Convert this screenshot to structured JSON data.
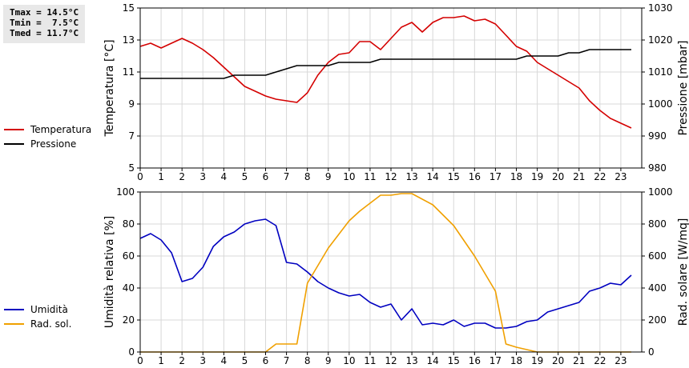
{
  "stats": {
    "tmax": "Tmax = 14.5°C",
    "tmin": "Tmin =  7.5°C",
    "tmed": "Tmed = 11.7°C"
  },
  "colors": {
    "temperature": "#d40000",
    "pressure": "#000000",
    "humidity": "#0000c0",
    "radiation": "#f0a000",
    "grid": "#d8d8d8",
    "frame": "#000000"
  },
  "chart_data": [
    {
      "type": "line",
      "xlabel": "",
      "xlim": [
        0,
        24
      ],
      "xticks": [
        "0",
        "1",
        "2",
        "3",
        "4",
        "5",
        "6",
        "7",
        "8",
        "9",
        "10",
        "11",
        "12",
        "13",
        "14",
        "15",
        "16",
        "17",
        "18",
        "19",
        "20",
        "21",
        "22",
        "23"
      ],
      "ylabel": "Temperatura [°C]",
      "ylim": [
        5,
        15
      ],
      "yticks": [
        "5",
        "7",
        "9",
        "11",
        "13",
        "15"
      ],
      "y2label": "Pressione [mbar]",
      "y2lim": [
        980,
        1030
      ],
      "y2ticks": [
        "980",
        "990",
        "1000",
        "1010",
        "1020",
        "1030"
      ],
      "grid": true,
      "legend_position": "left",
      "series": [
        {
          "name": "Temperatura",
          "axis": "left",
          "color": "#d40000",
          "x": [
            0,
            0.5,
            1,
            1.5,
            2,
            2.5,
            3,
            3.5,
            4,
            4.5,
            5,
            5.5,
            6,
            6.5,
            7,
            7.5,
            8,
            8.5,
            9,
            9.5,
            10,
            10.5,
            11,
            11.5,
            12,
            12.5,
            13,
            13.5,
            14,
            14.5,
            15,
            15.5,
            16,
            16.5,
            17,
            17.5,
            18,
            18.5,
            19,
            19.5,
            20,
            20.5,
            21,
            21.5,
            22,
            22.5,
            23,
            23.5
          ],
          "values": [
            12.6,
            12.8,
            12.5,
            12.8,
            13.1,
            12.8,
            12.4,
            11.9,
            11.3,
            10.7,
            10.1,
            9.8,
            9.5,
            9.3,
            9.2,
            9.1,
            9.7,
            10.8,
            11.6,
            12.1,
            12.2,
            12.9,
            12.9,
            12.4,
            13.1,
            13.8,
            14.1,
            13.5,
            14.1,
            14.4,
            14.4,
            14.5,
            14.2,
            14.3,
            14.0,
            13.3,
            12.6,
            12.3,
            11.6,
            11.2,
            10.8,
            10.4,
            10.0,
            9.2,
            8.6,
            8.1,
            7.8,
            7.5
          ]
        },
        {
          "name": "Pressione",
          "axis": "right",
          "color": "#000000",
          "x": [
            0,
            0.5,
            1,
            1.5,
            2,
            2.5,
            3,
            3.5,
            4,
            4.5,
            5,
            5.5,
            6,
            6.5,
            7,
            7.5,
            8,
            8.5,
            9,
            9.5,
            10,
            10.5,
            11,
            11.5,
            12,
            12.5,
            13,
            13.5,
            14,
            14.5,
            15,
            15.5,
            16,
            16.5,
            17,
            17.5,
            18,
            18.5,
            19,
            19.5,
            20,
            20.5,
            21,
            21.5,
            22,
            22.5,
            23,
            23.5
          ],
          "values": [
            1008,
            1008,
            1008,
            1008,
            1008,
            1008,
            1008,
            1008,
            1008,
            1009,
            1009,
            1009,
            1009,
            1010,
            1011,
            1012,
            1012,
            1012,
            1012,
            1013,
            1013,
            1013,
            1013,
            1014,
            1014,
            1014,
            1014,
            1014,
            1014,
            1014,
            1014,
            1014,
            1014,
            1014,
            1014,
            1014,
            1014,
            1015,
            1015,
            1015,
            1015,
            1016,
            1016,
            1017,
            1017,
            1017,
            1017,
            1017
          ]
        }
      ]
    },
    {
      "type": "line",
      "xlabel": "",
      "xlim": [
        0,
        24
      ],
      "xticks": [
        "0",
        "1",
        "2",
        "3",
        "4",
        "5",
        "6",
        "7",
        "8",
        "9",
        "10",
        "11",
        "12",
        "13",
        "14",
        "15",
        "16",
        "17",
        "18",
        "19",
        "20",
        "21",
        "22",
        "23"
      ],
      "ylabel": "Umidità relativa [%]",
      "ylim": [
        0,
        100
      ],
      "yticks": [
        "0",
        "20",
        "40",
        "60",
        "80",
        "100"
      ],
      "y2label": "Rad. solare [W/mq]",
      "y2lim": [
        0,
        1000
      ],
      "y2ticks": [
        "0",
        "200",
        "400",
        "600",
        "800",
        "1000"
      ],
      "grid": true,
      "legend_position": "left",
      "series": [
        {
          "name": "Umidità",
          "axis": "left",
          "color": "#0000c0",
          "x": [
            0,
            0.5,
            1,
            1.5,
            2,
            2.5,
            3,
            3.5,
            4,
            4.5,
            5,
            5.5,
            6,
            6.5,
            7,
            7.5,
            8,
            8.5,
            9,
            9.5,
            10,
            10.5,
            11,
            11.5,
            12,
            12.5,
            13,
            13.5,
            14,
            14.5,
            15,
            15.5,
            16,
            16.5,
            17,
            17.5,
            18,
            18.5,
            19,
            19.5,
            20,
            20.5,
            21,
            21.5,
            22,
            22.5,
            23,
            23.5
          ],
          "values": [
            71,
            74,
            70,
            62,
            44,
            46,
            53,
            66,
            72,
            75,
            80,
            82,
            83,
            79,
            56,
            55,
            50,
            44,
            40,
            37,
            35,
            36,
            31,
            28,
            30,
            20,
            27,
            17,
            18,
            17,
            20,
            16,
            18,
            18,
            15,
            15,
            16,
            19,
            20,
            25,
            27,
            29,
            31,
            38,
            40,
            43,
            42,
            48
          ]
        },
        {
          "name": "Rad. sol.",
          "axis": "right",
          "color": "#f0a000",
          "x": [
            0,
            1,
            2,
            3,
            4,
            5,
            6,
            6.5,
            7,
            7.5,
            8,
            9,
            10,
            10.5,
            11,
            11.5,
            12,
            12.5,
            13,
            14,
            15,
            16,
            17,
            17.5,
            18,
            18.5,
            19,
            20,
            21,
            22,
            23,
            23.5
          ],
          "values": [
            0,
            0,
            0,
            0,
            0,
            0,
            0,
            50,
            50,
            50,
            430,
            650,
            820,
            880,
            930,
            980,
            980,
            990,
            990,
            920,
            790,
            600,
            380,
            50,
            30,
            15,
            0,
            0,
            0,
            0,
            0,
            0
          ]
        }
      ]
    }
  ]
}
